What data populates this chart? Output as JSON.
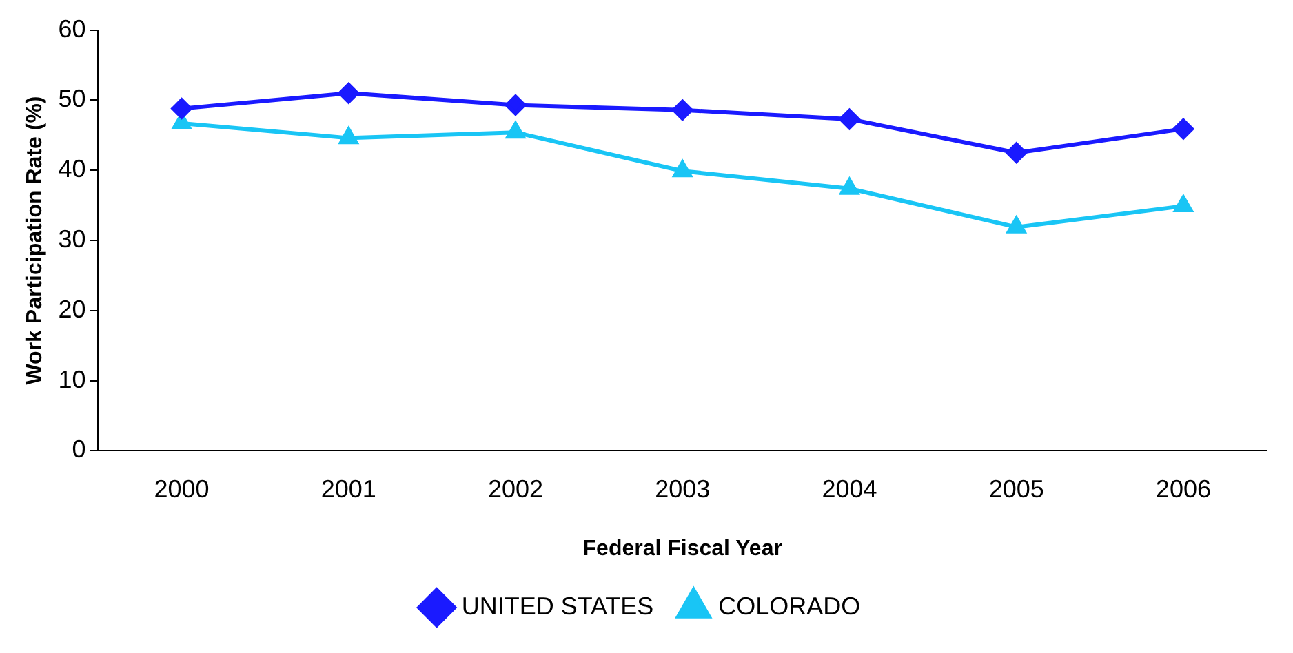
{
  "chart_data": {
    "type": "line",
    "xlabel": "Federal Fiscal Year",
    "ylabel": "Work Participation Rate (%)",
    "categories": [
      "2000",
      "2001",
      "2002",
      "2003",
      "2004",
      "2005",
      "2006"
    ],
    "series": [
      {
        "name": "UNITED STATES",
        "color": "#1a1aff",
        "marker": "diamond",
        "values": [
          48.8,
          51,
          49.3,
          48.6,
          47.3,
          42.5,
          45.9
        ]
      },
      {
        "name": "COLORADO",
        "color": "#19c5f5",
        "marker": "triangle",
        "values": [
          46.7,
          44.6,
          45.4,
          39.9,
          37.4,
          31.9,
          34.9
        ]
      }
    ],
    "ylim": [
      0,
      60
    ],
    "yticks": [
      0,
      10,
      20,
      30,
      40,
      50,
      60
    ],
    "grid": false,
    "legend": "bottom",
    "line_style": "solid"
  }
}
